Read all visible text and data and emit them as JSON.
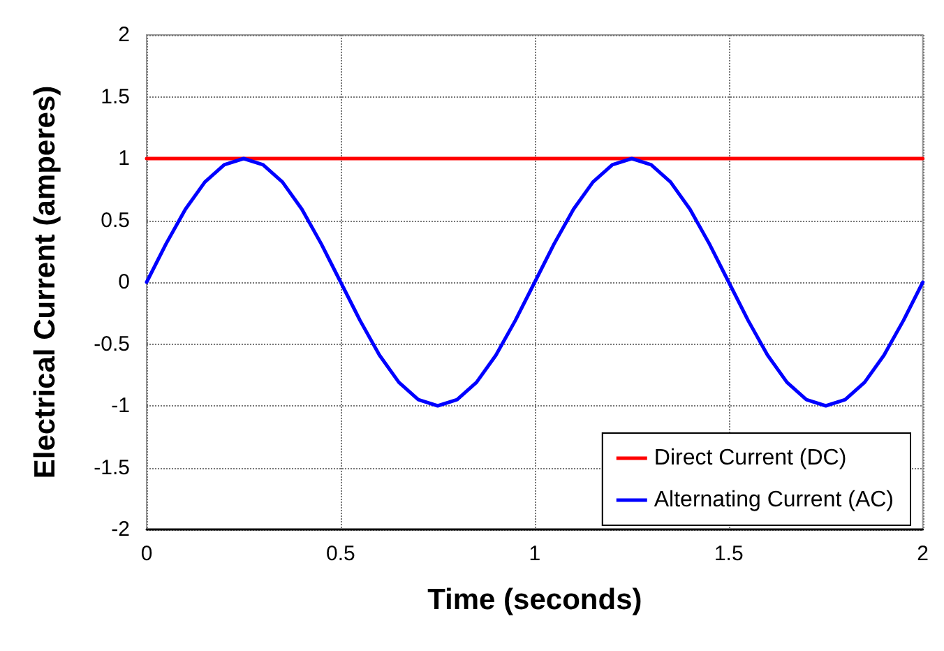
{
  "chart_data": {
    "type": "line",
    "xlabel": "Time (seconds)",
    "ylabel": "Electrical Current (amperes)",
    "x": [
      0,
      0.05,
      0.1,
      0.15,
      0.2,
      0.25,
      0.3,
      0.35,
      0.4,
      0.45,
      0.5,
      0.55,
      0.6,
      0.65,
      0.7,
      0.75,
      0.8,
      0.85,
      0.9,
      0.95,
      1,
      1.05,
      1.1,
      1.15,
      1.2,
      1.25,
      1.3,
      1.35,
      1.4,
      1.45,
      1.5,
      1.55,
      1.6,
      1.65,
      1.7,
      1.75,
      1.8,
      1.85,
      1.9,
      1.95,
      2
    ],
    "series": [
      {
        "name": "Direct Current (DC)",
        "color": "#ff0000",
        "values": [
          1,
          1,
          1,
          1,
          1,
          1,
          1,
          1,
          1,
          1,
          1,
          1,
          1,
          1,
          1,
          1,
          1,
          1,
          1,
          1,
          1,
          1,
          1,
          1,
          1,
          1,
          1,
          1,
          1,
          1,
          1,
          1,
          1,
          1,
          1,
          1,
          1,
          1,
          1,
          1,
          1
        ]
      },
      {
        "name": "Alternating Current (AC)",
        "color": "#0000ff",
        "values": [
          0,
          0.31,
          0.59,
          0.81,
          0.95,
          1,
          0.95,
          0.81,
          0.59,
          0.31,
          0,
          -0.31,
          -0.59,
          -0.81,
          -0.95,
          -1,
          -0.95,
          -0.81,
          -0.59,
          -0.31,
          0,
          0.31,
          0.59,
          0.81,
          0.95,
          1,
          0.95,
          0.81,
          0.59,
          0.31,
          0,
          -0.31,
          -0.59,
          -0.81,
          -0.95,
          -1,
          -0.95,
          -0.81,
          -0.59,
          -0.31,
          0
        ]
      }
    ],
    "xlim": [
      0,
      2
    ],
    "xticks": [
      0,
      0.5,
      1,
      1.5,
      2
    ],
    "ylim": [
      -2,
      2
    ],
    "yticks": [
      -2,
      -1.5,
      -1,
      -0.5,
      0,
      0.5,
      1,
      1.5,
      2
    ],
    "grid": true,
    "legend": "bottom right",
    "marker": "none",
    "line_style": "solid"
  }
}
